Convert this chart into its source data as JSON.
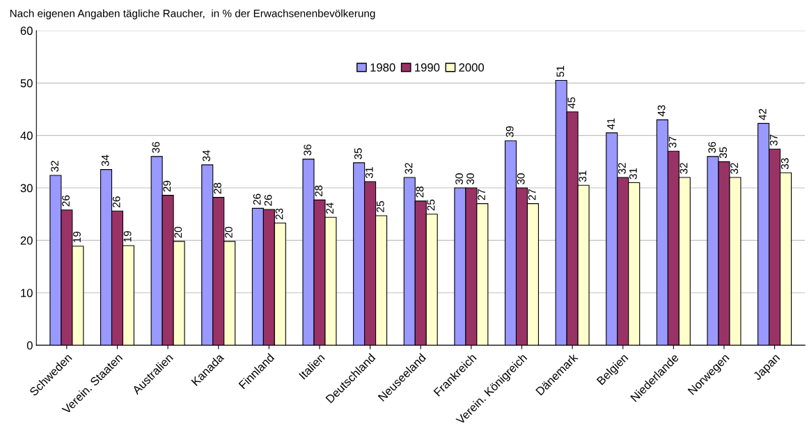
{
  "chart_data": {
    "type": "bar",
    "title": "Nach eigenen Angaben tägliche Raucher,  in % der Erwachsenenbevölkerung",
    "categories": [
      "Schweden",
      "Verein. Staaten",
      "Australien",
      "Kanada",
      "Finnland",
      "Italien",
      "Deutschland",
      "Neuseeland",
      "Frankreich",
      "Verein. Königreich",
      "Dänemark",
      "Belgien",
      "Niederlande",
      "Norwegen",
      "Japan"
    ],
    "series": [
      {
        "name": "1980",
        "color": "#9999ff",
        "values": [
          32.4,
          33.5,
          36.0,
          34.4,
          26.1,
          35.5,
          34.8,
          32.0,
          30.0,
          39.0,
          50.5,
          40.5,
          43.0,
          36.0,
          42.3
        ],
        "value_labels": [
          "32",
          "34",
          "36",
          "34",
          "26",
          "36",
          "35",
          "32",
          "30",
          "39",
          "51",
          "41",
          "43",
          "36",
          "42"
        ]
      },
      {
        "name": "1990",
        "color": "#993366",
        "values": [
          25.8,
          25.6,
          28.6,
          28.2,
          25.9,
          27.7,
          31.2,
          27.5,
          30.0,
          30.0,
          44.5,
          32.0,
          37.0,
          35.0,
          37.4
        ],
        "value_labels": [
          "26",
          "26",
          "29",
          "28",
          "26",
          "28",
          "31",
          "28",
          "30",
          "30",
          "45",
          "32",
          "37",
          "35",
          "37"
        ]
      },
      {
        "name": "2000",
        "color": "#ffffcc",
        "values": [
          18.9,
          19.0,
          19.8,
          19.8,
          23.3,
          24.4,
          24.7,
          25.0,
          27.0,
          27.0,
          30.5,
          31.0,
          32.0,
          32.0,
          32.9
        ],
        "value_labels": [
          "19",
          "19",
          "20",
          "20",
          "23",
          "24",
          "25",
          "25",
          "27",
          "27",
          "31",
          "31",
          "32",
          "32",
          "33"
        ]
      }
    ],
    "ylim": [
      0,
      60
    ],
    "yticks": [
      0,
      10,
      20,
      30,
      40,
      50,
      60
    ],
    "grid": "y",
    "legend": "top"
  }
}
